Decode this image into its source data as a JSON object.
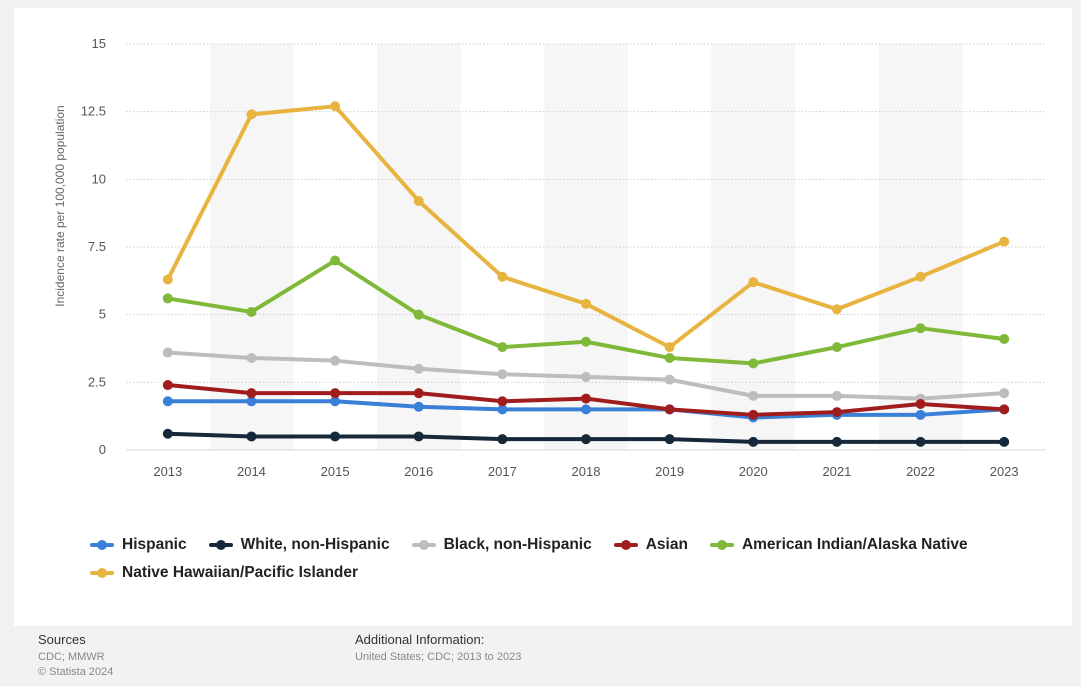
{
  "chart_data": {
    "type": "line",
    "ylabel": "Incidence rate per 100,000 population",
    "x": [
      "2013",
      "2014",
      "2015",
      "2016",
      "2017",
      "2018",
      "2019",
      "2020",
      "2021",
      "2022",
      "2023"
    ],
    "yticks": [
      "0",
      "2.5",
      "5",
      "7.5",
      "10",
      "12.5",
      "15"
    ],
    "ylim": [
      0,
      15
    ],
    "grid": true,
    "legend_position": "bottom",
    "series": [
      {
        "name": "Hispanic",
        "color": "#3a7fd8",
        "values": [
          1.8,
          1.8,
          1.8,
          1.6,
          1.5,
          1.5,
          1.5,
          1.2,
          1.3,
          1.3,
          1.5
        ]
      },
      {
        "name": "White, non-Hispanic",
        "color": "#16283a",
        "values": [
          0.6,
          0.5,
          0.5,
          0.5,
          0.4,
          0.4,
          0.4,
          0.3,
          0.3,
          0.3,
          0.3
        ]
      },
      {
        "name": "Black, non-Hispanic",
        "color": "#bdbdbd",
        "values": [
          3.6,
          3.4,
          3.3,
          3.0,
          2.8,
          2.7,
          2.6,
          2.0,
          2.0,
          1.9,
          2.1
        ]
      },
      {
        "name": "Asian",
        "color": "#a11d1d",
        "values": [
          2.4,
          2.1,
          2.1,
          2.1,
          1.8,
          1.9,
          1.5,
          1.3,
          1.4,
          1.7,
          1.5
        ]
      },
      {
        "name": "American Indian/Alaska Native",
        "color": "#80b83a",
        "values": [
          5.6,
          5.1,
          7.0,
          5.0,
          3.8,
          4.0,
          3.4,
          3.2,
          3.8,
          4.5,
          4.1
        ]
      },
      {
        "name": "Native Hawaiian/Pacific Islander",
        "color": "#e8b440",
        "values": [
          6.3,
          12.4,
          12.7,
          9.2,
          6.4,
          5.4,
          3.8,
          6.2,
          5.2,
          6.4,
          7.7
        ]
      }
    ]
  },
  "footer": {
    "sources_title": "Sources",
    "sources_text": "CDC; MMWR",
    "copyright": "© Statista 2024",
    "additional_title": "Additional Information:",
    "additional_text": "United States; CDC; 2013 to 2023"
  }
}
